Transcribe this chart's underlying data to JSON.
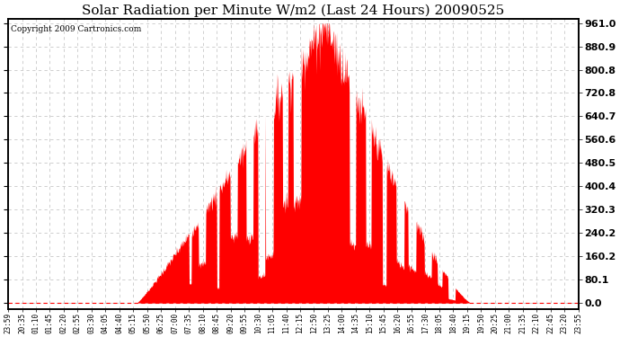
{
  "title": "Solar Radiation per Minute W/m2 (Last 24 Hours) 20090525",
  "copyright": "Copyright 2009 Cartronics.com",
  "background_color": "#ffffff",
  "fill_color": "#ff0000",
  "grid_color": "#c8c8c8",
  "dashed_line_color": "#ff0000",
  "yticks": [
    0.0,
    80.1,
    160.2,
    240.2,
    320.3,
    400.4,
    480.5,
    560.6,
    640.7,
    720.8,
    800.8,
    880.9,
    961.0
  ],
  "xtick_labels": [
    "23:59",
    "20:35",
    "01:10",
    "01:45",
    "02:20",
    "02:55",
    "03:30",
    "04:05",
    "04:40",
    "05:15",
    "05:50",
    "06:25",
    "07:00",
    "07:35",
    "08:10",
    "08:45",
    "09:20",
    "09:55",
    "10:30",
    "11:05",
    "11:40",
    "12:15",
    "12:50",
    "13:25",
    "14:00",
    "14:35",
    "15:10",
    "15:45",
    "16:20",
    "16:55",
    "17:30",
    "18:05",
    "18:40",
    "19:15",
    "19:50",
    "20:25",
    "21:00",
    "21:35",
    "22:10",
    "22:45",
    "23:20",
    "23:55"
  ],
  "ylim_min": -20,
  "ylim_max": 975,
  "title_fontsize": 11,
  "copyright_fontsize": 6.5,
  "ytick_fontsize": 8,
  "xtick_fontsize": 5.5
}
